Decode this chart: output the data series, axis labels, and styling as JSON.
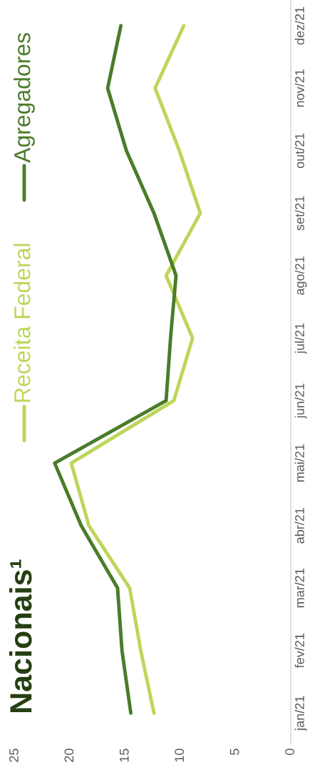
{
  "chart_data": {
    "type": "line",
    "title": "Nacionais¹",
    "categories": [
      "dez/21",
      "nov/21",
      "out/21",
      "set/21",
      "ago/21",
      "jul/21",
      "jun/21",
      "mai/21",
      "abr/21",
      "mar/21",
      "fev/21",
      "jan/21"
    ],
    "series": [
      {
        "name": "Receita Federal",
        "color": "#bcd65a",
        "values": [
          9.7,
          12.3,
          10.1,
          8.2,
          11.3,
          8.9,
          10.6,
          19.9,
          18.3,
          14.6,
          13.6,
          12.4
        ]
      },
      {
        "name": "Agregadores",
        "color": "#4a7c2a",
        "values": [
          15.4,
          16.6,
          14.9,
          12.4,
          10.4,
          10.9,
          11.3,
          21.4,
          19.0,
          15.7,
          15.3,
          14.5
        ]
      }
    ],
    "orientation": "horizontal",
    "xlim": [
      25,
      0
    ],
    "xticks": [
      0,
      5,
      10,
      15,
      20,
      25
    ],
    "grid": false,
    "legend": "top left"
  }
}
